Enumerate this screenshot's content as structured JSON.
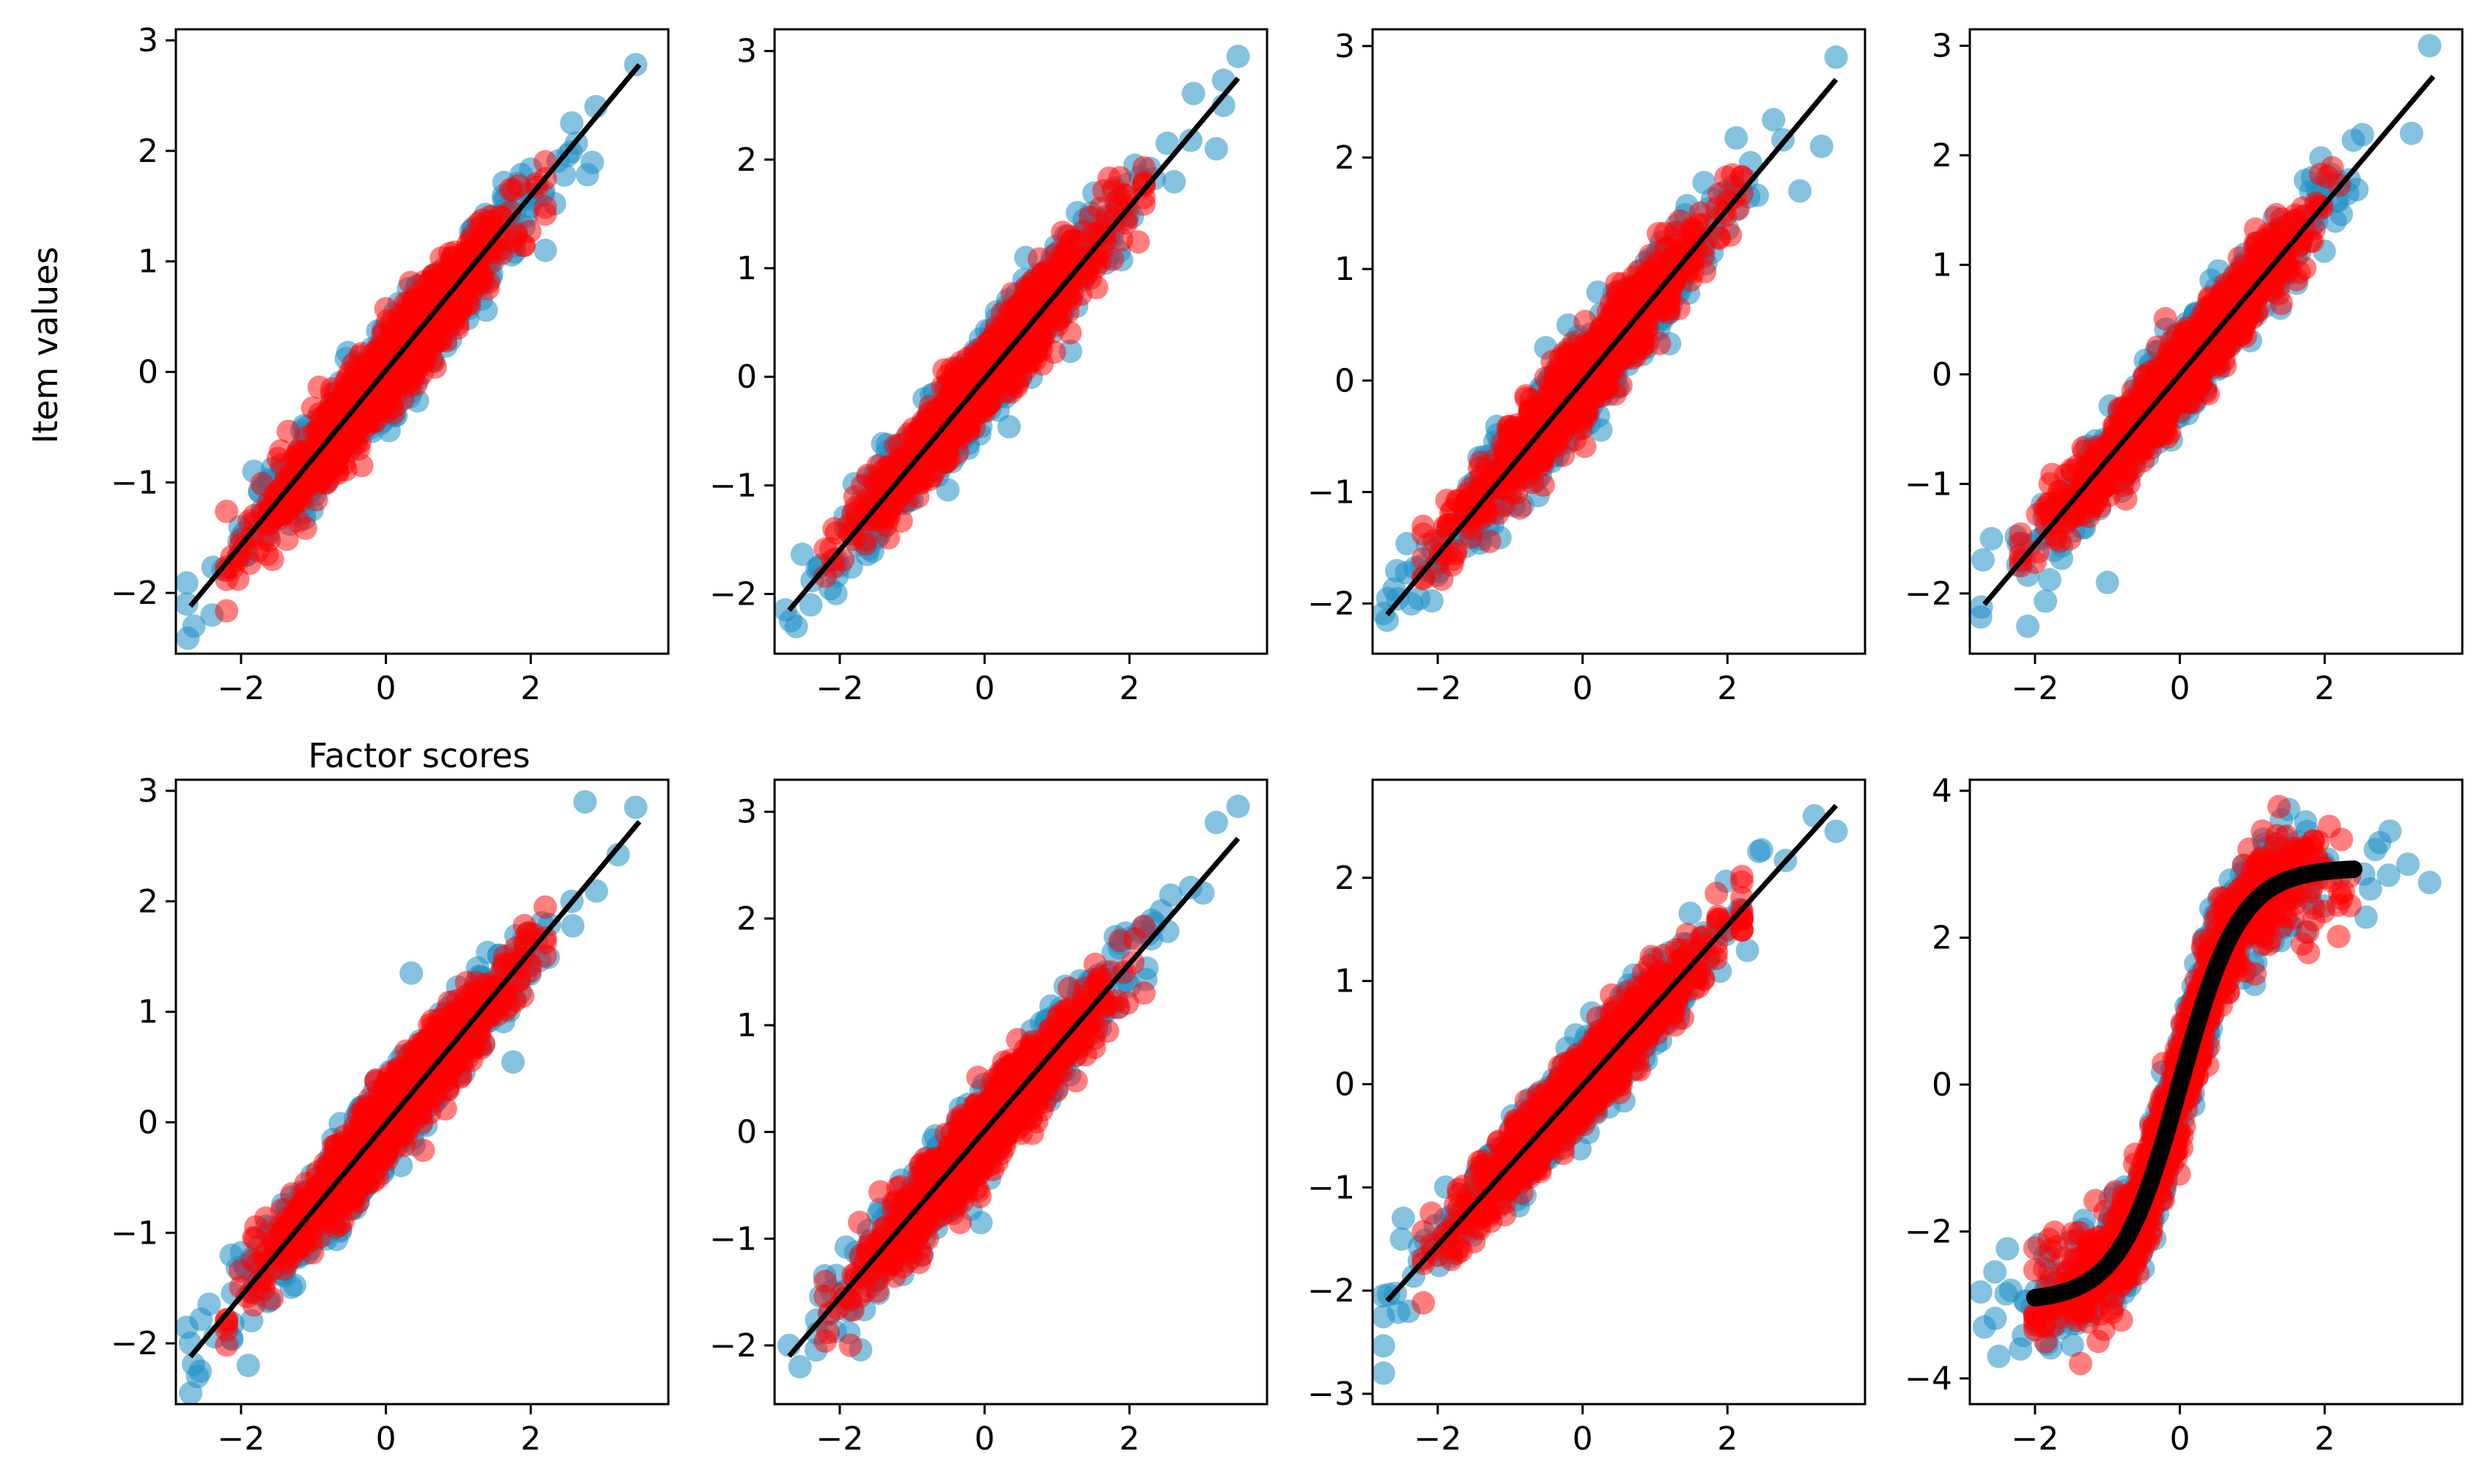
{
  "figure": {
    "ylabel": "Item values",
    "xlabel": "Factor scores"
  },
  "colors": {
    "group_a": "#1f8fc4",
    "group_b": "#ff0000",
    "fit_line": "#000000"
  },
  "chart_data": [
    {
      "type": "scatter",
      "xlim": [
        -2.9,
        3.9
      ],
      "ylim": [
        -2.55,
        3.1
      ],
      "xticks": [
        -2,
        0,
        2
      ],
      "yticks": [
        -2,
        -1,
        0,
        1,
        2,
        3
      ],
      "xtick_labels": [
        "−2",
        "0",
        "2"
      ],
      "ytick_labels": [
        "−2",
        "−1",
        "0",
        "1",
        "2",
        "3"
      ],
      "fit": {
        "kind": "linear",
        "x": [
          -2.7,
          3.5
        ],
        "y": [
          -2.12,
          2.78
        ]
      },
      "shape": "linear",
      "slope": 0.79,
      "intercept": 0.0,
      "spread": 0.18,
      "blue_outliers": [
        [
          3.45,
          2.78
        ],
        [
          2.9,
          2.4
        ],
        [
          2.2,
          1.1
        ],
        [
          -2.65,
          -2.3
        ],
        [
          -2.4,
          -2.2
        ]
      ]
    },
    {
      "type": "scatter",
      "xlim": [
        -2.9,
        3.9
      ],
      "ylim": [
        -2.55,
        3.2
      ],
      "xticks": [
        -2,
        0,
        2
      ],
      "yticks": [
        -2,
        -1,
        0,
        1,
        2,
        3
      ],
      "xtick_labels": [
        "−2",
        "0",
        "2"
      ],
      "ytick_labels": [
        "−2",
        "−1",
        "0",
        "1",
        "2",
        "3"
      ],
      "fit": {
        "kind": "linear",
        "x": [
          -2.7,
          3.5
        ],
        "y": [
          -2.15,
          2.75
        ]
      },
      "shape": "linear",
      "slope": 0.79,
      "intercept": 0.0,
      "spread": 0.18,
      "blue_outliers": [
        [
          3.5,
          2.95
        ],
        [
          3.2,
          2.1
        ],
        [
          -2.6,
          -2.3
        ],
        [
          -2.4,
          -2.1
        ]
      ]
    },
    {
      "type": "scatter",
      "xlim": [
        -2.9,
        3.9
      ],
      "ylim": [
        -2.45,
        3.15
      ],
      "xticks": [
        -2,
        0,
        2
      ],
      "yticks": [
        -2,
        -1,
        0,
        1,
        2,
        3
      ],
      "xtick_labels": [
        "−2",
        "0",
        "2"
      ],
      "ytick_labels": [
        "−2",
        "−1",
        "0",
        "1",
        "2",
        "3"
      ],
      "fit": {
        "kind": "linear",
        "x": [
          -2.7,
          3.5
        ],
        "y": [
          -2.1,
          2.7
        ]
      },
      "shape": "linear",
      "slope": 0.77,
      "intercept": 0.0,
      "spread": 0.18,
      "blue_outliers": [
        [
          3.5,
          2.9
        ],
        [
          3.3,
          2.1
        ],
        [
          3.0,
          1.7
        ],
        [
          -2.7,
          -2.15
        ]
      ]
    },
    {
      "type": "scatter",
      "xlim": [
        -2.9,
        3.9
      ],
      "ylim": [
        -2.55,
        3.15
      ],
      "xticks": [
        -2,
        0,
        2
      ],
      "yticks": [
        -2,
        -1,
        0,
        1,
        2,
        3
      ],
      "xtick_labels": [
        "−2",
        "0",
        "2"
      ],
      "ytick_labels": [
        "−2",
        "−1",
        "0",
        "1",
        "2",
        "3"
      ],
      "fit": {
        "kind": "linear",
        "x": [
          -2.7,
          3.5
        ],
        "y": [
          -2.1,
          2.72
        ]
      },
      "shape": "linear",
      "slope": 0.78,
      "intercept": 0.0,
      "spread": 0.18,
      "blue_outliers": [
        [
          3.45,
          3.0
        ],
        [
          3.2,
          2.2
        ],
        [
          -1.0,
          -1.9
        ],
        [
          -2.1,
          -2.3
        ],
        [
          -2.6,
          -1.5
        ]
      ]
    },
    {
      "type": "scatter",
      "xlim": [
        -2.9,
        3.9
      ],
      "ylim": [
        -2.55,
        3.1
      ],
      "xticks": [
        -2,
        0,
        2
      ],
      "yticks": [
        -2,
        -1,
        0,
        1,
        2,
        3
      ],
      "xtick_labels": [
        "−2",
        "0",
        "2"
      ],
      "ytick_labels": [
        "−2",
        "−1",
        "0",
        "1",
        "2",
        "3"
      ],
      "fit": {
        "kind": "linear",
        "x": [
          -2.7,
          3.5
        ],
        "y": [
          -2.12,
          2.72
        ]
      },
      "shape": "linear",
      "slope": 0.78,
      "intercept": 0.0,
      "spread": 0.18,
      "blue_outliers": [
        [
          3.45,
          2.85
        ],
        [
          2.75,
          2.9
        ],
        [
          0.35,
          1.35
        ],
        [
          -1.9,
          -2.2
        ],
        [
          -2.6,
          -2.3
        ],
        [
          -2.7,
          -2.0
        ]
      ]
    },
    {
      "type": "scatter",
      "xlim": [
        -2.9,
        3.9
      ],
      "ylim": [
        -2.55,
        3.3
      ],
      "xticks": [
        -2,
        0,
        2
      ],
      "yticks": [
        -2,
        -1,
        0,
        1,
        2,
        3
      ],
      "xtick_labels": [
        "−2",
        "0",
        "2"
      ],
      "ytick_labels": [
        "−2",
        "−1",
        "0",
        "1",
        "2",
        "3"
      ],
      "fit": {
        "kind": "linear",
        "x": [
          -2.7,
          3.5
        ],
        "y": [
          -2.1,
          2.75
        ]
      },
      "shape": "linear",
      "slope": 0.78,
      "intercept": 0.0,
      "spread": 0.18,
      "blue_outliers": [
        [
          3.5,
          3.05
        ],
        [
          3.2,
          2.9
        ],
        [
          -0.05,
          -0.85
        ],
        [
          -2.55,
          -2.2
        ],
        [
          -2.7,
          -2.0
        ]
      ]
    },
    {
      "type": "scatter",
      "xlim": [
        -2.9,
        3.9
      ],
      "ylim": [
        -3.1,
        2.95
      ],
      "xticks": [
        -2,
        0,
        2
      ],
      "yticks": [
        -3,
        -2,
        -1,
        0,
        1,
        2
      ],
      "xtick_labels": [
        "−2",
        "0",
        "2"
      ],
      "ytick_labels": [
        "−3",
        "−2",
        "−1",
        "0",
        "1",
        "2"
      ],
      "fit": {
        "kind": "linear",
        "x": [
          -2.7,
          3.5
        ],
        "y": [
          -2.1,
          2.7
        ]
      },
      "shape": "linear",
      "slope": 0.77,
      "intercept": 0.0,
      "spread": 0.18,
      "blue_outliers": [
        [
          3.5,
          2.45
        ],
        [
          3.2,
          2.6
        ],
        [
          -2.75,
          -2.8
        ],
        [
          -2.5,
          -1.5
        ],
        [
          -2.4,
          -2.2
        ]
      ]
    },
    {
      "type": "scatter",
      "xlim": [
        -2.9,
        3.9
      ],
      "ylim": [
        -4.35,
        4.15
      ],
      "xticks": [
        -2,
        0,
        2
      ],
      "yticks": [
        -4,
        -2,
        0,
        2,
        4
      ],
      "xtick_labels": [
        "−2",
        "0",
        "2"
      ],
      "ytick_labels": [
        "−4",
        "−2",
        "0",
        "2",
        "4"
      ],
      "fit": {
        "kind": "sigmoid",
        "amplitude": 2.95,
        "k": 2.4,
        "x": [
          -2.0,
          2.4
        ]
      },
      "shape": "sigmoid",
      "amplitude": 2.95,
      "k": 2.4,
      "spread": 0.35,
      "blue_outliers": [
        [
          3.45,
          2.75
        ],
        [
          3.15,
          3.0
        ],
        [
          2.9,
          3.45
        ],
        [
          2.7,
          3.2
        ],
        [
          -2.7,
          -3.3
        ],
        [
          -2.5,
          -3.7
        ],
        [
          -2.2,
          -3.6
        ]
      ]
    }
  ]
}
